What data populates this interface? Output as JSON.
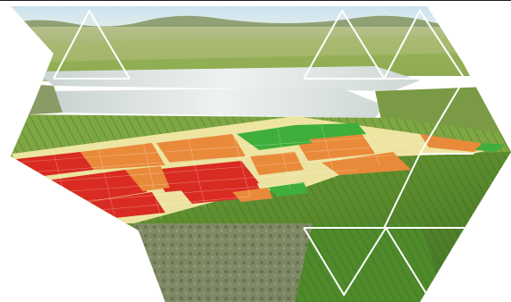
{
  "scene": {
    "subject": "rice-paddy-fields-with-crop-health-overlay",
    "legend_colors": {
      "healthy": "#3fae3a",
      "moderate": "#e98a3a",
      "stressed": "#d92b22",
      "neutral": "#f3e8a6"
    },
    "sky_color": "#d7ebf6",
    "field_greens": [
      "#7aa53a",
      "#5f8f2d",
      "#9bbd55",
      "#3d6d22"
    ],
    "water_color": "#dfe6e4"
  }
}
